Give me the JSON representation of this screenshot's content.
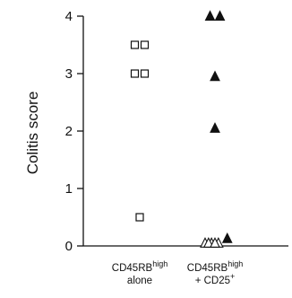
{
  "chart_data": {
    "type": "scatter",
    "title": "",
    "xlabel": "",
    "ylabel": "Colitis score",
    "ylim": [
      0,
      4
    ],
    "yticks": [
      0,
      1,
      2,
      3,
      4
    ],
    "categories": [
      {
        "line1_base": "CD45RB",
        "line1_sup": "high",
        "line2_base": "alone",
        "line2_sup": ""
      },
      {
        "line1_base": "CD45RB",
        "line1_sup": "high",
        "line2_base": "+ CD25",
        "line2_sup": "+"
      }
    ],
    "series": [
      {
        "category_index": 0,
        "marker": "square-open",
        "color": "#111111",
        "points": [
          {
            "y": 3.5,
            "offset": -1
          },
          {
            "y": 3.5,
            "offset": 1
          },
          {
            "y": 3.0,
            "offset": -1
          },
          {
            "y": 3.0,
            "offset": 1
          },
          {
            "y": 0.5,
            "offset": 0
          }
        ]
      },
      {
        "category_index": 1,
        "marker": "triangle-filled",
        "color": "#111111",
        "points": [
          {
            "y": 4.0,
            "offset": -1
          },
          {
            "y": 4.0,
            "offset": 1
          },
          {
            "y": 2.95,
            "offset": 0
          },
          {
            "y": 2.05,
            "offset": 0
          },
          {
            "y": 0.13,
            "offset": 2.5
          }
        ]
      },
      {
        "category_index": 1,
        "marker": "triangle-open",
        "color": "#111111",
        "points": [
          {
            "y": 0.05,
            "offset": -2
          },
          {
            "y": 0.05,
            "offset": -0.7
          },
          {
            "y": 0.05,
            "offset": 0.7
          },
          {
            "y": 0.05,
            "offset": -1.3
          },
          {
            "y": 0.05,
            "offset": 0
          }
        ]
      }
    ]
  }
}
